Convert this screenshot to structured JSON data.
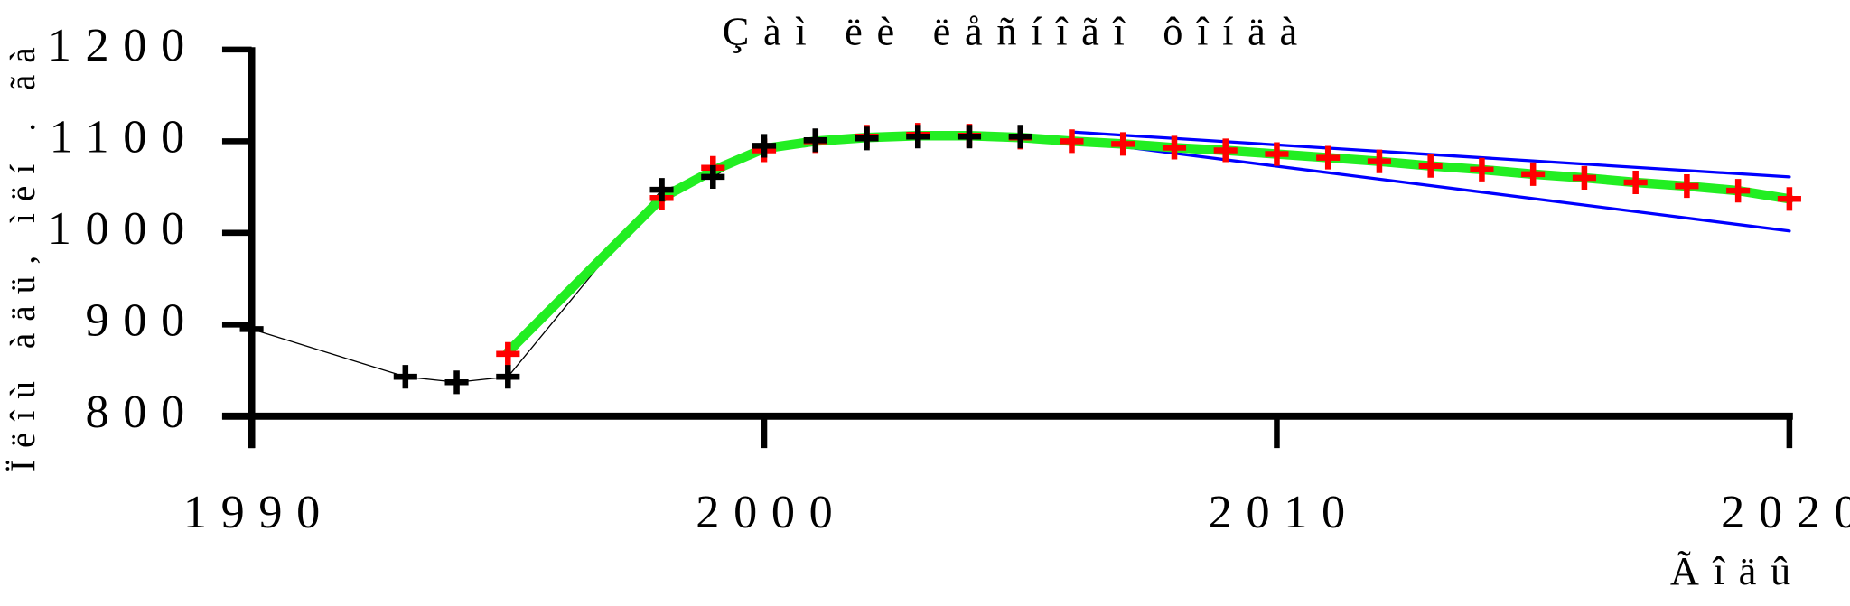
{
  "chart_data": {
    "type": "line",
    "title": "Çàì ëè ëåñíîãî ôîíäà",
    "x_label": "Ãîäû",
    "y_label": "Ïëîù àäü, ìëí . ãà",
    "xlim": [
      1990,
      2020
    ],
    "xticks": [
      1990,
      2000,
      2010,
      2020
    ],
    "ylim": [
      800,
      1200
    ],
    "yticks": [
      800,
      900,
      1000,
      1100,
      1200
    ],
    "series": [
      {
        "color": "#0000ff",
        "line": true,
        "markers": false,
        "width": 2.5,
        "x": [
          2006,
          2020
        ],
        "values": [
          1110,
          1061
        ]
      },
      {
        "color": "#0000ff",
        "line": true,
        "markers": false,
        "width": 2.5,
        "x": [
          2006,
          2020
        ],
        "values": [
          1101,
          1002
        ]
      },
      {
        "color": "#000000",
        "line": true,
        "markers": true,
        "width": 1,
        "x": [
          1990,
          1993,
          1994,
          1995,
          1998,
          1999,
          2000,
          2001,
          2002,
          2003,
          2004,
          2005
        ],
        "values": [
          895,
          843,
          837,
          843,
          1047,
          1061,
          1095,
          1101,
          1103,
          1105,
          1105,
          1105
        ]
      },
      {
        "color": "#22ee22",
        "line": true,
        "markers": false,
        "width": 8,
        "x": [
          1995,
          1998,
          1999,
          2000,
          2001,
          2002,
          2003,
          2004,
          2005,
          2006,
          2007,
          2008,
          2009,
          2010,
          2011,
          2012,
          2013,
          2014,
          2015,
          2016,
          2017,
          2018,
          2019,
          2020
        ],
        "values": [
          870,
          1038,
          1068,
          1092,
          1100,
          1104,
          1106,
          1106,
          1104,
          1100,
          1097,
          1093,
          1090,
          1086,
          1082,
          1078,
          1073,
          1069,
          1064,
          1060,
          1055,
          1051,
          1046,
          1037
        ]
      },
      {
        "color": "#ff0000",
        "line": false,
        "markers": true,
        "width": 1,
        "x": [
          1995,
          1998,
          1999,
          2000,
          2001,
          2002,
          2003,
          2004,
          2005,
          2006,
          2007,
          2008,
          2009,
          2010,
          2011,
          2012,
          2013,
          2014,
          2015,
          2016,
          2017,
          2018,
          2019,
          2020
        ],
        "values": [
          868,
          1038,
          1071,
          1090,
          1100,
          1105,
          1107,
          1106,
          1104,
          1100,
          1097,
          1093,
          1090,
          1086,
          1082,
          1078,
          1073,
          1069,
          1064,
          1060,
          1055,
          1051,
          1046,
          1037
        ]
      }
    ]
  }
}
